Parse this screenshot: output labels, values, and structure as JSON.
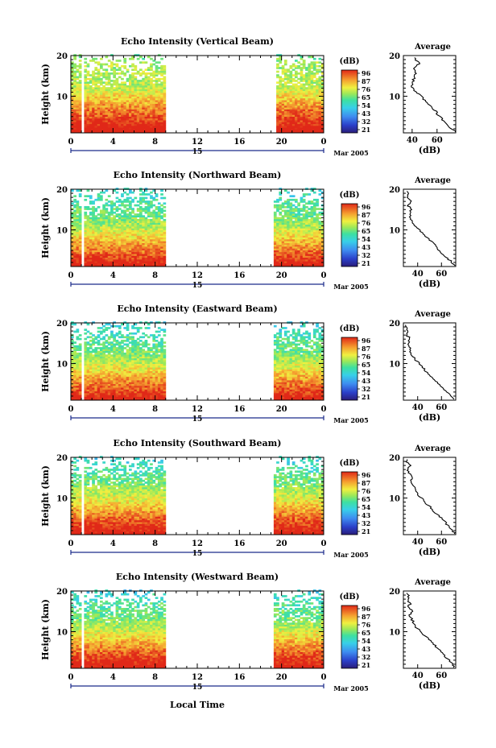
{
  "figure": {
    "xlabel": "Local Time",
    "date_day": "15",
    "date_month": "Mar 2005",
    "colorbar_unit": "(dB)",
    "colorbar_ticks": [
      "96",
      "87",
      "76",
      "65",
      "54",
      "43",
      "32",
      "21"
    ]
  },
  "chart_data": [
    {
      "type": "heatmap",
      "title": "Echo Intensity (Vertical Beam)",
      "ylabel": "Height (km)",
      "xlabel": "Local Time",
      "x_ticks": [
        "0",
        "4",
        "8",
        "12",
        "16",
        "20",
        "0"
      ],
      "y_ticks": [
        "10",
        "20"
      ],
      "xlim": [
        0,
        24
      ],
      "ylim": [
        1,
        20
      ],
      "data_gaps_hours": [
        [
          1.0,
          1.15
        ],
        [
          3.9,
          4.05
        ],
        [
          9.1,
          19.4
        ]
      ],
      "colorbar_label": "(dB)",
      "colorbar_range": [
        21,
        96
      ],
      "avg_title": "Average",
      "avg_xlabel": "(dB)",
      "avg_xticks": [
        "40",
        "60"
      ],
      "avg_xlim": [
        33,
        75
      ],
      "avg_profile": {
        "height_km": [
          1.5,
          3,
          5,
          7,
          9,
          11,
          12,
          13,
          14,
          15,
          16,
          17,
          18,
          19,
          20
        ],
        "db": [
          74,
          68,
          62,
          57,
          50,
          44,
          40,
          40,
          41,
          42,
          43,
          42,
          46,
          42,
          41
        ]
      }
    },
    {
      "type": "heatmap",
      "title": "Echo Intensity (Northward Beam)",
      "ylabel": "Height (km)",
      "xlabel": "Local Time",
      "x_ticks": [
        "0",
        "4",
        "8",
        "12",
        "16",
        "20",
        "0"
      ],
      "y_ticks": [
        "10",
        "20"
      ],
      "xlim": [
        0,
        24
      ],
      "ylim": [
        1,
        20
      ],
      "data_gaps_hours": [
        [
          1.0,
          1.15
        ],
        [
          3.9,
          4.05
        ],
        [
          9.1,
          19.2
        ]
      ],
      "colorbar_label": "(dB)",
      "colorbar_range": [
        21,
        96
      ],
      "avg_title": "Average",
      "avg_xlabel": "(dB)",
      "avg_xticks": [
        "40",
        "60"
      ],
      "avg_xlim": [
        28,
        72
      ],
      "avg_profile": {
        "height_km": [
          1.5,
          3,
          5,
          7,
          9,
          11,
          13,
          14,
          15,
          16,
          17,
          18,
          19,
          20
        ],
        "db": [
          71,
          65,
          58,
          52,
          45,
          38,
          34,
          33,
          35,
          32,
          34,
          31,
          33,
          31
        ]
      }
    },
    {
      "type": "heatmap",
      "title": "Echo Intensity (Eastward Beam)",
      "ylabel": "Height (km)",
      "xlabel": "Local Time",
      "x_ticks": [
        "0",
        "4",
        "8",
        "12",
        "16",
        "20",
        "0"
      ],
      "y_ticks": [
        "10",
        "20"
      ],
      "xlim": [
        0,
        24
      ],
      "ylim": [
        1,
        20
      ],
      "data_gaps_hours": [
        [
          1.0,
          1.15
        ],
        [
          3.9,
          4.05
        ],
        [
          9.1,
          19.2
        ]
      ],
      "colorbar_label": "(dB)",
      "colorbar_range": [
        21,
        96
      ],
      "avg_title": "Average",
      "avg_xlabel": "(dB)",
      "avg_xticks": [
        "40",
        "60"
      ],
      "avg_xlim": [
        28,
        72
      ],
      "avg_profile": {
        "height_km": [
          1.5,
          3,
          5,
          7,
          9,
          11,
          13,
          14,
          15,
          16,
          17,
          18,
          19,
          20
        ],
        "db": [
          70,
          64,
          58,
          51,
          44,
          38,
          33,
          34,
          32,
          34,
          31,
          32,
          30,
          31
        ]
      }
    },
    {
      "type": "heatmap",
      "title": "Echo Intensity (Southward Beam)",
      "ylabel": "Height (km)",
      "xlabel": "Local Time",
      "x_ticks": [
        "0",
        "4",
        "8",
        "12",
        "16",
        "20",
        "0"
      ],
      "y_ticks": [
        "10",
        "20"
      ],
      "xlim": [
        0,
        24
      ],
      "ylim": [
        1,
        20
      ],
      "data_gaps_hours": [
        [
          1.0,
          1.15
        ],
        [
          3.9,
          4.05
        ],
        [
          9.1,
          19.2
        ]
      ],
      "colorbar_label": "(dB)",
      "colorbar_range": [
        21,
        96
      ],
      "avg_title": "Average",
      "avg_xlabel": "(dB)",
      "avg_xticks": [
        "40",
        "60"
      ],
      "avg_xlim": [
        28,
        72
      ],
      "avg_profile": {
        "height_km": [
          1.5,
          3,
          5,
          7,
          9,
          11,
          13,
          14,
          15,
          16,
          17,
          18,
          19,
          20
        ],
        "db": [
          71,
          66,
          60,
          53,
          46,
          40,
          36,
          34,
          35,
          33,
          32,
          34,
          31,
          32
        ]
      }
    },
    {
      "type": "heatmap",
      "title": "Echo Intensity (Westward Beam)",
      "ylabel": "Height (km)",
      "xlabel": "Local Time",
      "x_ticks": [
        "0",
        "4",
        "8",
        "12",
        "16",
        "20",
        "0"
      ],
      "y_ticks": [
        "10",
        "20"
      ],
      "xlim": [
        0,
        24
      ],
      "ylim": [
        1,
        20
      ],
      "data_gaps_hours": [
        [
          1.0,
          1.15
        ],
        [
          3.9,
          4.05
        ],
        [
          9.1,
          19.2
        ]
      ],
      "colorbar_label": "(dB)",
      "colorbar_range": [
        21,
        96
      ],
      "avg_title": "Average",
      "avg_xlabel": "(dB)",
      "avg_xticks": [
        "40",
        "60"
      ],
      "avg_xlim": [
        28,
        72
      ],
      "avg_profile": {
        "height_km": [
          1.5,
          3,
          5,
          7,
          9,
          11,
          13,
          14,
          15,
          16,
          17,
          18,
          19,
          20
        ],
        "db": [
          71,
          66,
          60,
          53,
          46,
          39,
          35,
          33,
          36,
          32,
          34,
          31,
          33,
          30
        ]
      }
    }
  ]
}
